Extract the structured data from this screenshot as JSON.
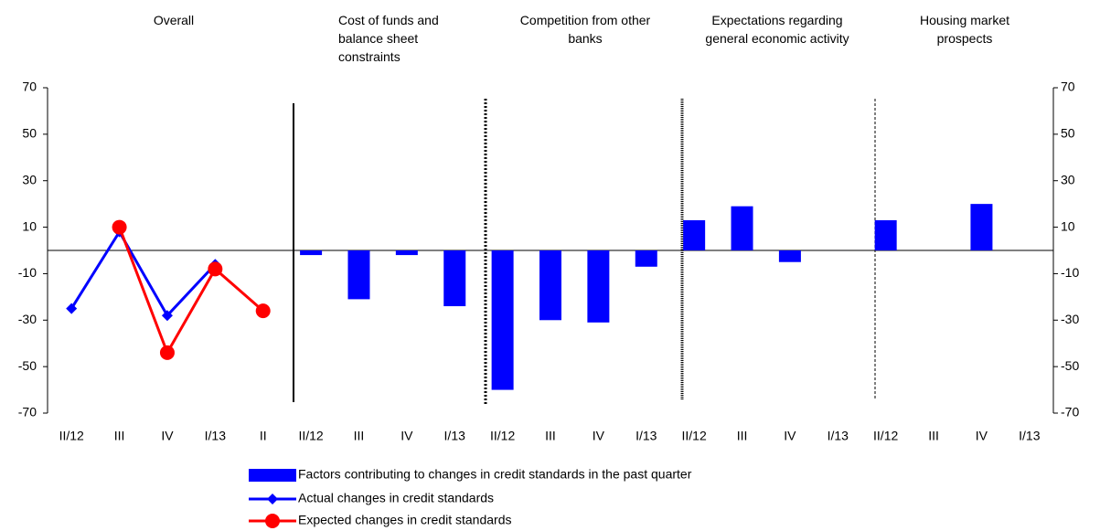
{
  "chart_data": {
    "type": "bar",
    "groups": [
      "Overall",
      "Cost of funds and balance sheet constraints",
      "Competition from other banks",
      "Expectations regarding general economic activity",
      "Housing market prospects"
    ],
    "categories": [
      "II/12",
      "III",
      "IV",
      "I/13",
      "II",
      "II/12",
      "III",
      "IV",
      "I/13",
      "II/12",
      "III",
      "IV",
      "I/13",
      "II/12",
      "III",
      "IV",
      "I/13",
      "II/12",
      "III",
      "IV",
      "I/13"
    ],
    "series": [
      {
        "name": "Factors contributing to changes in credit standards in the past quarter",
        "type": "bar",
        "color": "#0000ff",
        "values": [
          null,
          null,
          null,
          null,
          null,
          -2,
          -21,
          -2,
          -24,
          -60,
          -30,
          -31,
          -7,
          13,
          19,
          -5,
          0,
          13,
          0,
          20,
          0
        ]
      },
      {
        "name": "Actual changes in credit standards",
        "type": "line",
        "marker": "diamond",
        "color": "#0000ff",
        "values": [
          -25,
          8,
          -28,
          -6,
          null,
          null,
          null,
          null,
          null,
          null,
          null,
          null,
          null,
          null,
          null,
          null,
          null,
          null,
          null,
          null,
          null
        ]
      },
      {
        "name": "Expected changes in credit standards",
        "type": "line",
        "marker": "circle",
        "color": "#ff0000",
        "values": [
          null,
          10,
          -44,
          -8,
          -26,
          null,
          null,
          null,
          null,
          null,
          null,
          null,
          null,
          null,
          null,
          null,
          null,
          null,
          null,
          null,
          null
        ]
      }
    ],
    "ylim": [
      -70,
      70
    ],
    "yticks": [
      70,
      50,
      30,
      10,
      -10,
      -30,
      -50,
      -70
    ],
    "y2lim": [
      -70,
      70
    ],
    "y2ticks": [
      70,
      50,
      30,
      10,
      -10,
      -30,
      -50,
      -70
    ],
    "grid": false,
    "legend": "bottom"
  }
}
